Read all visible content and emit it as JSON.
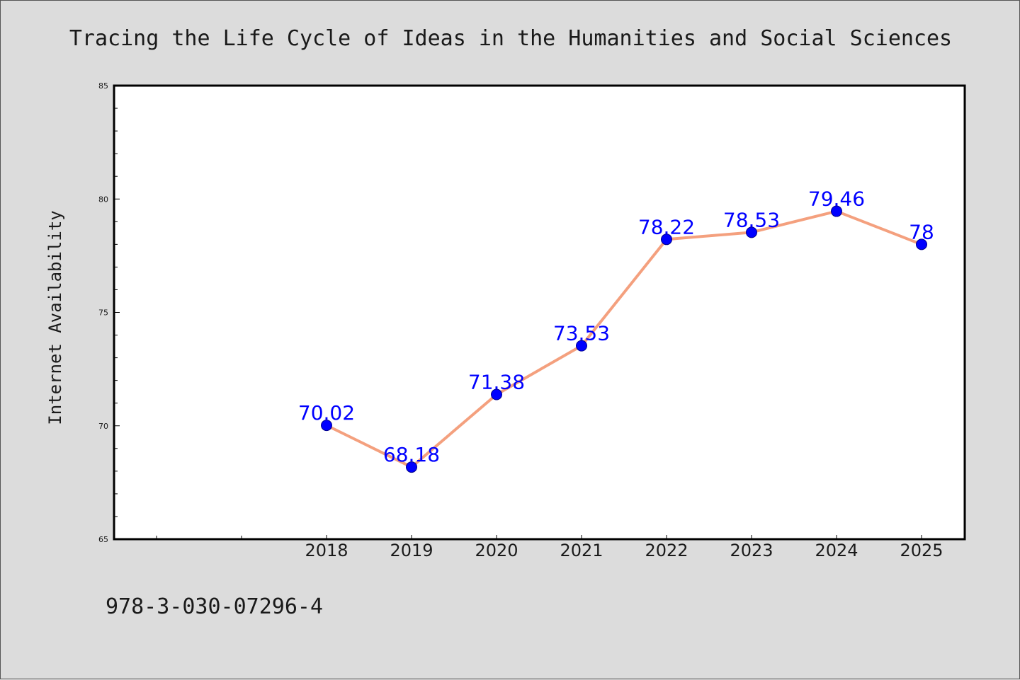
{
  "caption": "978-3-030-07296-4",
  "colors": {
    "background": "#dcdcdc",
    "plot_background": "#ffffff",
    "line": "#f4a07e",
    "marker": "#0000ff",
    "data_label": "#0000ff",
    "text": "#1a1a1a"
  },
  "chart_data": {
    "type": "line",
    "title": "Tracing the Life Cycle of Ideas in the Humanities and Social Sciences",
    "xlabel": "",
    "ylabel": "Internet Availability",
    "categories": [
      "2018",
      "2019",
      "2020",
      "2021",
      "2022",
      "2023",
      "2024",
      "2025"
    ],
    "series": [
      {
        "values": [
          70.02,
          68.18,
          71.38,
          73.53,
          78.22,
          78.53,
          79.46,
          78.0
        ]
      }
    ],
    "data_labels": [
      "70.02",
      "68.18",
      "71.38",
      "73.53",
      "78.22",
      "78.53",
      "79.46",
      "78"
    ],
    "ylim": [
      65,
      85
    ],
    "yticks": [
      "65",
      "70",
      "75",
      "80",
      "85"
    ],
    "grid": false,
    "legend": "none"
  }
}
